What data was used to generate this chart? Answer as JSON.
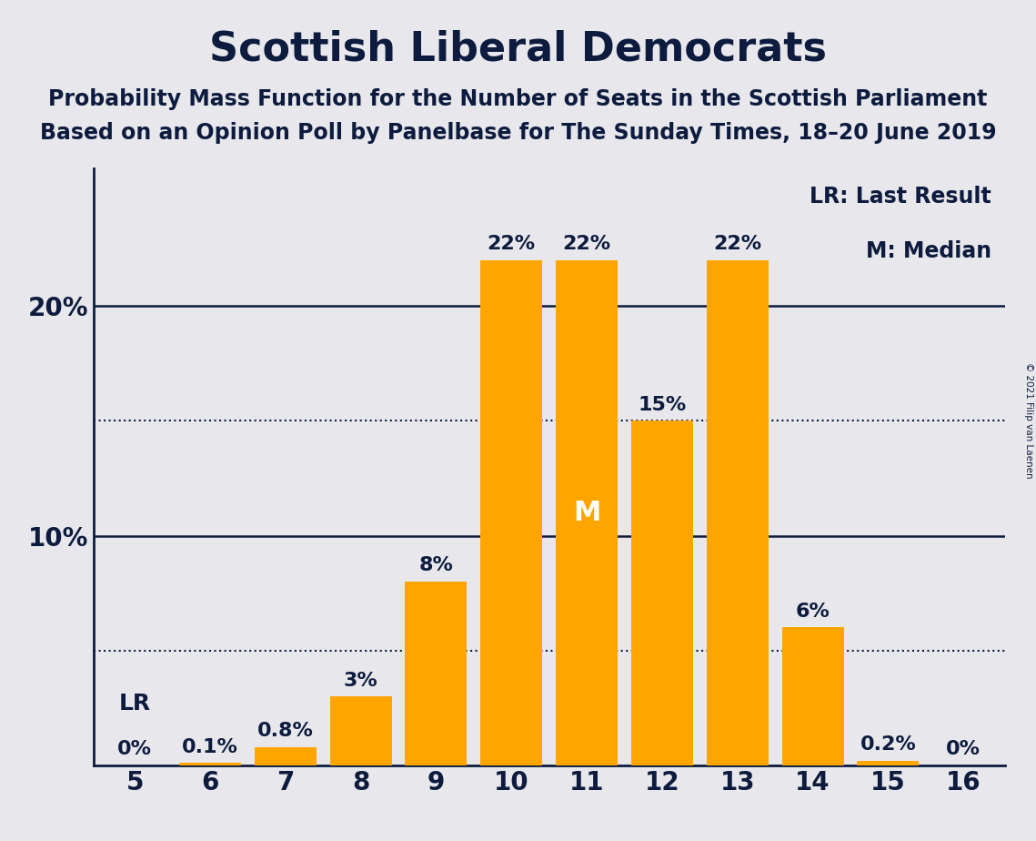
{
  "title": "Scottish Liberal Democrats",
  "subtitle1": "Probability Mass Function for the Number of Seats in the Scottish Parliament",
  "subtitle2": "Based on an Opinion Poll by Panelbase for The Sunday Times, 18–20 June 2019",
  "copyright": "© 2021 Filip van Laenen",
  "categories": [
    5,
    6,
    7,
    8,
    9,
    10,
    11,
    12,
    13,
    14,
    15,
    16
  ],
  "values": [
    0.0,
    0.1,
    0.8,
    3.0,
    8.0,
    22.0,
    22.0,
    15.0,
    22.0,
    6.0,
    0.2,
    0.0
  ],
  "labels": [
    "0%",
    "0.1%",
    "0.8%",
    "3%",
    "8%",
    "22%",
    "22%",
    "15%",
    "22%",
    "6%",
    "0.2%",
    "0%"
  ],
  "bar_color": "#FFA500",
  "background_color": "#e8e8ec",
  "title_color": "#0d1b3e",
  "axis_color": "#0d1b3e",
  "label_color": "#0d1b3e",
  "ylim": [
    0,
    26
  ],
  "solid_grid_values": [
    10,
    20
  ],
  "dotted_grid_values": [
    5,
    15
  ],
  "lr_seat": 5,
  "median_seat": 11,
  "legend_lr": "LR: Last Result",
  "legend_m": "M: Median",
  "title_fontsize": 32,
  "subtitle_fontsize": 17,
  "axis_tick_fontsize": 20,
  "bar_label_fontsize": 16,
  "lr_fontsize": 18,
  "legend_fontsize": 17
}
